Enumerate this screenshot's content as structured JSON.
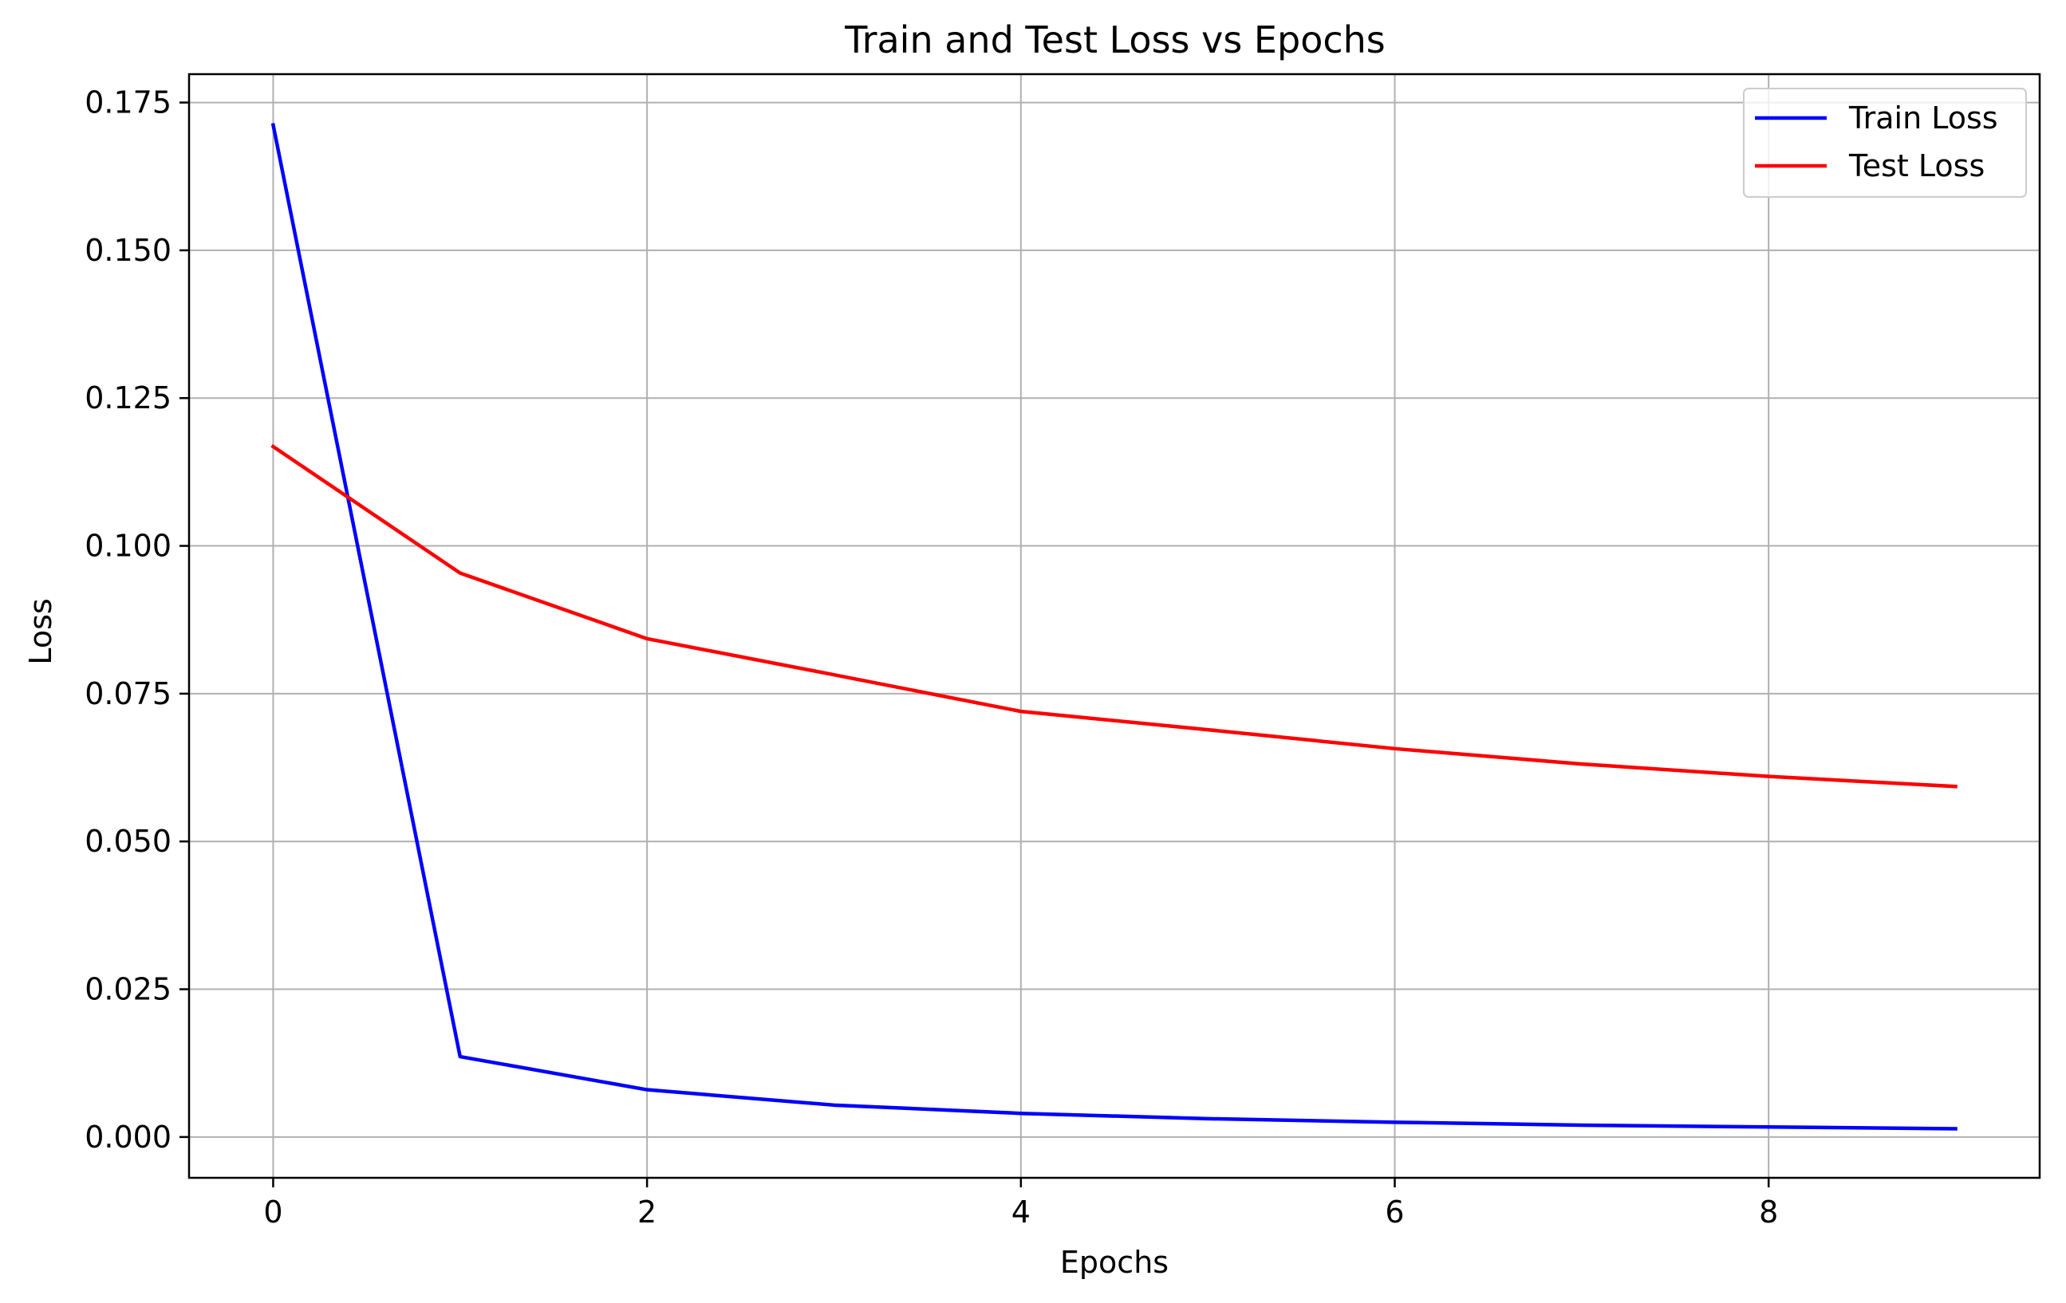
{
  "chart_data": {
    "type": "line",
    "title": "Train and Test Loss vs Epochs",
    "xlabel": "Epochs",
    "ylabel": "Loss",
    "x": [
      0,
      1,
      2,
      3,
      4,
      5,
      6,
      7,
      8,
      9
    ],
    "series": [
      {
        "name": "Train Loss",
        "color": "#0000ff",
        "values": [
          0.1712,
          0.0136,
          0.008,
          0.0054,
          0.004,
          0.0031,
          0.0025,
          0.002,
          0.0017,
          0.0014
        ]
      },
      {
        "name": "Test Loss",
        "color": "#ff0000",
        "values": [
          0.1168,
          0.0954,
          0.0843,
          0.0782,
          0.072,
          0.0689,
          0.0657,
          0.0631,
          0.061,
          0.0593
        ]
      }
    ],
    "xlim": [
      -0.45,
      9.45
    ],
    "ylim": [
      -0.0069,
      0.1798
    ],
    "xticks": [
      "0",
      "2",
      "4",
      "6",
      "8"
    ],
    "xtick_values": [
      0,
      2,
      4,
      6,
      8
    ],
    "yticks": [
      "0.000",
      "0.025",
      "0.050",
      "0.075",
      "0.100",
      "0.125",
      "0.150",
      "0.175"
    ],
    "ytick_values": [
      0.0,
      0.025,
      0.05,
      0.075,
      0.1,
      0.125,
      0.15,
      0.175
    ],
    "grid": true,
    "legend_position": "top-right"
  }
}
